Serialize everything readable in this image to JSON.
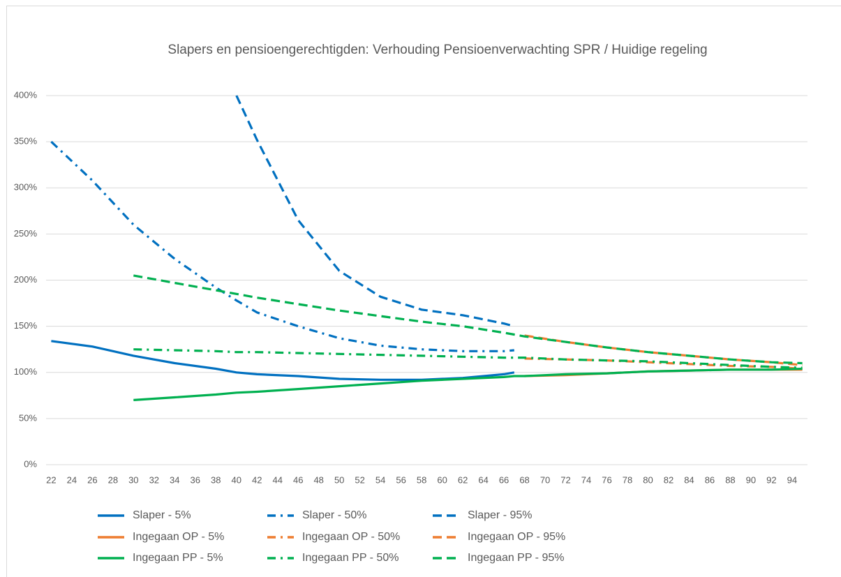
{
  "chart_data": {
    "type": "line",
    "title": "Slapers en pensioengerechtigden: Verhouding Pensioenverwachting SPR / Huidige regeling",
    "x": [
      22,
      26,
      30,
      34,
      38,
      40,
      42,
      46,
      50,
      54,
      58,
      62,
      66,
      67,
      68,
      72,
      76,
      80,
      84,
      88,
      92,
      95
    ],
    "xlim": [
      21.5,
      95.5
    ],
    "xticks": [
      22,
      24,
      26,
      28,
      30,
      32,
      34,
      36,
      38,
      40,
      42,
      44,
      46,
      48,
      50,
      52,
      54,
      56,
      58,
      60,
      62,
      64,
      66,
      68,
      70,
      72,
      74,
      76,
      78,
      80,
      82,
      84,
      86,
      88,
      90,
      92,
      94
    ],
    "ylim": [
      0,
      400
    ],
    "yticks": [
      {
        "value": 0,
        "label": "0%"
      },
      {
        "value": 50,
        "label": "50%"
      },
      {
        "value": 100,
        "label": "100%"
      },
      {
        "value": 150,
        "label": "150%"
      },
      {
        "value": 200,
        "label": "200%"
      },
      {
        "value": 250,
        "label": "250%"
      },
      {
        "value": 300,
        "label": "300%"
      },
      {
        "value": 350,
        "label": "350%"
      },
      {
        "value": 400,
        "label": "400%"
      }
    ],
    "grid": true,
    "legend": "bottom",
    "series": [
      {
        "name": "Slaper - 5%",
        "color": "#0070c0",
        "dash": "solid",
        "values": [
          134,
          128,
          118,
          110,
          104,
          100,
          98,
          96,
          93,
          92,
          92,
          94,
          98,
          100,
          null,
          null,
          null,
          null,
          null,
          null,
          null,
          null
        ]
      },
      {
        "name": "Slaper - 50%",
        "color": "#0070c0",
        "dash": "dash-dot",
        "values": [
          350,
          308,
          260,
          223,
          192,
          178,
          165,
          150,
          137,
          129,
          125,
          123,
          123,
          124,
          null,
          null,
          null,
          null,
          null,
          null,
          null,
          null
        ]
      },
      {
        "name": "Slaper - 95%",
        "color": "#0070c0",
        "dash": "long-dash",
        "values": [
          null,
          null,
          null,
          null,
          null,
          400,
          352,
          265,
          210,
          182,
          168,
          162,
          153,
          150,
          null,
          null,
          null,
          null,
          null,
          null,
          null,
          null
        ]
      },
      {
        "name": "Ingegaan OP - 5%",
        "color": "#ed7d31",
        "dash": "solid",
        "values": [
          null,
          null,
          null,
          null,
          null,
          null,
          null,
          null,
          null,
          null,
          null,
          null,
          null,
          null,
          96,
          97,
          99,
          101,
          102,
          103,
          103,
          103
        ]
      },
      {
        "name": "Ingegaan OP - 50%",
        "color": "#ed7d31",
        "dash": "dash-dot",
        "values": [
          null,
          null,
          null,
          null,
          null,
          null,
          null,
          null,
          null,
          null,
          null,
          null,
          null,
          null,
          115,
          114,
          113,
          111,
          109,
          107,
          106,
          104
        ]
      },
      {
        "name": "Ingegaan OP - 95%",
        "color": "#ed7d31",
        "dash": "long-dash",
        "values": [
          null,
          null,
          null,
          null,
          null,
          null,
          null,
          null,
          null,
          null,
          null,
          null,
          null,
          null,
          140,
          133,
          127,
          122,
          118,
          114,
          111,
          108
        ]
      },
      {
        "name": "Ingegaan PP - 5%",
        "color": "#00b050",
        "dash": "solid",
        "values": [
          null,
          null,
          70,
          73,
          76,
          78,
          79,
          82,
          85,
          88,
          91,
          93,
          95,
          96,
          96,
          98,
          99,
          101,
          102,
          103,
          103,
          104
        ]
      },
      {
        "name": "Ingegaan PP - 50%",
        "color": "#00b050",
        "dash": "dash-dot",
        "values": [
          null,
          null,
          125,
          124,
          123,
          122,
          122,
          121,
          120,
          119,
          118,
          117,
          116,
          116,
          116,
          114,
          113,
          112,
          110,
          108,
          106,
          105
        ]
      },
      {
        "name": "Ingegaan PP - 95%",
        "color": "#00b050",
        "dash": "long-dash",
        "values": [
          null,
          null,
          205,
          197,
          189,
          185,
          181,
          174,
          167,
          161,
          155,
          150,
          143,
          141,
          139,
          133,
          127,
          122,
          118,
          114,
          111,
          110
        ]
      }
    ]
  }
}
